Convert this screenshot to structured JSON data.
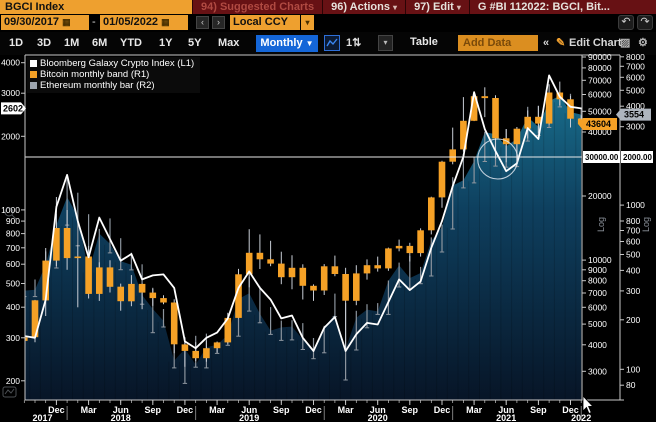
{
  "title_bar": {
    "ticker": "BGCI Index",
    "suggested_charts": "94) Suggested Charts",
    "actions": "96) Actions",
    "edit": "97) Edit",
    "chart_id": "G #BI 112022: BGCI, Bit...",
    "dropdown_glyph": "▾"
  },
  "range_bar": {
    "start_date": "09/30/2017",
    "end_date": "01/05/2022",
    "separator": "-",
    "calendar_icon": "▦",
    "prev": "‹",
    "next": "›",
    "currency": "Local CCY",
    "currency_dd": "▾",
    "undo_icon": "↶",
    "redo_icon": "↷"
  },
  "toolbar": {
    "periods": [
      "1D",
      "3D",
      "1M",
      "6M",
      "YTD",
      "1Y",
      "5Y",
      "Max"
    ],
    "period_lefts": [
      9,
      37,
      64,
      92,
      120,
      159,
      188,
      218
    ],
    "frequency": "Monthly",
    "frequency_dd": "▼",
    "panel_icon": "1⇅",
    "style_dd": "▾",
    "table_label": "Table",
    "add_data_label": "Add Data",
    "collapse_icon": "«",
    "pencil_icon": "✎",
    "edit_chart_label": "Edit Chart",
    "annotate_icon": "▨",
    "gear_icon": "⚙"
  },
  "legend": [
    {
      "label": "Bloomberg Galaxy Crypto Index  (L1)",
      "color": "#FFFFFF"
    },
    {
      "label": "Bitcoin monthly band (R1)",
      "color": "#F5A126"
    },
    {
      "label": "Ethereum monthly bar (R2)",
      "color": "#9CA4AD"
    }
  ],
  "colors": {
    "accent_orange": "#EEA02F",
    "bar_orange": "#F5A126",
    "maroon": "#671114",
    "frequency_blue": "#1466D8",
    "line_white": "#FFFFFF",
    "hilo_gray": "#8D959E",
    "area_top": "#1A7492",
    "area_mid": "#0E3F5E",
    "area_bottom": "#071527",
    "axis_gray": "#C8C8C8"
  },
  "chart_data": {
    "type": "mixed",
    "title": "BGCI Index with Bitcoin band and Ethereum bar",
    "months": [
      "2017-09",
      "2017-10",
      "2017-11",
      "2017-12",
      "2018-01",
      "2018-02",
      "2018-03",
      "2018-04",
      "2018-05",
      "2018-06",
      "2018-07",
      "2018-08",
      "2018-09",
      "2018-10",
      "2018-11",
      "2018-12",
      "2019-01",
      "2019-02",
      "2019-03",
      "2019-04",
      "2019-05",
      "2019-06",
      "2019-07",
      "2019-08",
      "2019-09",
      "2019-10",
      "2019-11",
      "2019-12",
      "2020-01",
      "2020-02",
      "2020-03",
      "2020-04",
      "2020-05",
      "2020-06",
      "2020-07",
      "2020-08",
      "2020-09",
      "2020-10",
      "2020-11",
      "2020-12",
      "2021-01",
      "2021-02",
      "2021-03",
      "2021-04",
      "2021-05",
      "2021-06",
      "2021-07",
      "2021-08",
      "2021-09",
      "2021-10",
      "2021-11",
      "2021-12",
      "2022-01"
    ],
    "series": [
      {
        "name": "Bloomberg Galaxy Crypto Index",
        "axis": "L1",
        "type": "line",
        "color": "#FFFFFF",
        "values": [
          305,
          300,
          430,
          1030,
          1390,
          900,
          640,
          930,
          760,
          620,
          660,
          520,
          540,
          545,
          480,
          290,
          272,
          300,
          315,
          360,
          480,
          560,
          480,
          430,
          360,
          370,
          300,
          265,
          330,
          365,
          265,
          310,
          345,
          340,
          420,
          520,
          470,
          510,
          700,
          900,
          1250,
          1650,
          3030,
          2140,
          1740,
          1440,
          1550,
          2160,
          1950,
          3550,
          2900,
          2640,
          2602
        ]
      },
      {
        "name": "Bitcoin",
        "axis": "R1",
        "type": "ohlc_band",
        "color": "#F5A126",
        "open": [
          4170,
          4338,
          6468,
          9947,
          14156,
          10221,
          10397,
          6938,
          9240,
          7494,
          6404,
          7729,
          7033,
          6626,
          6318,
          4017,
          3743,
          3457,
          3854,
          4105,
          5350,
          8574,
          10817,
          10085,
          9630,
          8310,
          9199,
          7569,
          7193,
          9350,
          8599,
          6439,
          8658,
          9461,
          9137,
          11350,
          11655,
          10784,
          13797,
          19698,
          29001,
          33114,
          45137,
          58919,
          57750,
          37333,
          35041,
          41460,
          47130,
          43790,
          61310,
          56987,
          46217
        ],
        "high": [
          4430,
          6500,
          11400,
          19800,
          17200,
          11790,
          11660,
          9760,
          9990,
          7750,
          8500,
          7760,
          7410,
          6830,
          6540,
          4300,
          4110,
          4190,
          4140,
          5650,
          9090,
          13970,
          13200,
          12320,
          10950,
          10540,
          9550,
          7690,
          9570,
          10500,
          9200,
          9460,
          10070,
          10380,
          11450,
          12480,
          12050,
          14100,
          19860,
          29300,
          41950,
          58350,
          61780,
          64870,
          59500,
          41300,
          42200,
          50500,
          52950,
          66970,
          68990,
          59100,
          47900
        ],
        "low": [
          4110,
          4110,
          5460,
          9380,
          9000,
          6000,
          6600,
          6430,
          7040,
          5780,
          6070,
          5880,
          6100,
          6200,
          3650,
          3150,
          3350,
          3330,
          3670,
          4050,
          5330,
          7450,
          9080,
          9360,
          7700,
          7300,
          6530,
          6430,
          6850,
          8400,
          3850,
          6140,
          8100,
          8830,
          8900,
          11000,
          9850,
          10380,
          13200,
          17600,
          28200,
          32350,
          45000,
          47000,
          30000,
          28800,
          29300,
          37300,
          39600,
          43300,
          53300,
          42000,
          42400
        ],
        "close": [
          4338,
          6468,
          9947,
          14156,
          10221,
          10397,
          6938,
          9240,
          7494,
          6404,
          7729,
          7033,
          6626,
          6318,
          4017,
          3743,
          3457,
          3854,
          4105,
          5350,
          8574,
          10817,
          10085,
          9630,
          8310,
          9199,
          7569,
          7193,
          9350,
          8599,
          6439,
          8658,
          9461,
          9137,
          11350,
          11655,
          10784,
          13797,
          19698,
          29001,
          33114,
          45137,
          58919,
          57750,
          37333,
          35041,
          41460,
          47130,
          43790,
          61310,
          56987,
          46217,
          43604
        ]
      },
      {
        "name": "Ethereum",
        "axis": "R2",
        "type": "hilo_bar_area",
        "color": "#9CA4AD",
        "high": [
          320,
          352,
          522,
          881,
          1432,
          1190,
          880,
          716,
          830,
          628,
          513,
          436,
          308,
          233,
          222,
          157,
          160,
          165,
          147,
          183,
          281,
          365,
          319,
          239,
          198,
          199,
          191,
          155,
          184,
          289,
          253,
          227,
          249,
          253,
          347,
          446,
          490,
          420,
          635,
          760,
          1477,
          2042,
          1947,
          2798,
          4372,
          2892,
          2540,
          3966,
          4028,
          4459,
          4868,
          4760,
          3918
        ],
        "low": [
          277,
          277,
          282,
          414,
          755,
          565,
          368,
          365,
          511,
          404,
          403,
          249,
          167,
          181,
          102,
          82,
          103,
          102,
          125,
          140,
          159,
          226,
          192,
          163,
          150,
          151,
          132,
          116,
          126,
          209,
          86,
          131,
          179,
          216,
          216,
          317,
          308,
          332,
          370,
          518,
          715,
          1272,
          1365,
          1842,
          1728,
          1700,
          1714,
          2452,
          2652,
          2967,
          3959,
          3503,
          3355
        ],
        "close": [
          301,
          305,
          434,
          756,
          1118,
          856,
          394,
          670,
          580,
          455,
          433,
          283,
          233,
          197,
          113,
          133,
          107,
          136,
          141,
          162,
          268,
          290,
          218,
          172,
          180,
          182,
          152,
          129,
          180,
          217,
          133,
          206,
          231,
          225,
          346,
          429,
          359,
          386,
          605,
          737,
          1314,
          1418,
          1846,
          2773,
          2706,
          2275,
          2536,
          3433,
          3001,
          4288,
          4631,
          3683,
          3554
        ]
      }
    ],
    "axes": {
      "L1": {
        "scale": "log",
        "min": 167,
        "max": 4300,
        "ticks": [
          4000,
          3000,
          2000,
          1000,
          900,
          800,
          700,
          600,
          500,
          400,
          300,
          200
        ],
        "last_value": "2602",
        "last_bg": "#FFFFFF"
      },
      "R1": {
        "scale": "log",
        "min": 2200,
        "max": 92000,
        "ticks": [
          90000,
          80000,
          70000,
          60000,
          50000,
          40000,
          20000,
          10000,
          9000,
          8000,
          7000,
          6000,
          5000,
          4000,
          3000
        ],
        "last_value": "43604",
        "last_bg": "#F5A126",
        "log_label": "Log"
      },
      "R2": {
        "scale": "log",
        "min": 65,
        "max": 8200,
        "ticks": [
          8000,
          7000,
          6000,
          5000,
          4000,
          3000,
          1000,
          800,
          700,
          600,
          500,
          400,
          300,
          200,
          100,
          80
        ],
        "last_value": "3554",
        "last_bg": "#AEB5BE",
        "log_label": "Log"
      }
    },
    "x_axis": {
      "quarter_labels": [
        "Dec",
        "Mar",
        "Jun",
        "Sep",
        "Dec",
        "Mar",
        "Jun",
        "Sep",
        "Dec",
        "Mar",
        "Jun",
        "Sep",
        "Dec",
        "Mar",
        "Jun",
        "Sep",
        "Dec"
      ],
      "quarter_mi": [
        3,
        6,
        9,
        12,
        15,
        18,
        21,
        24,
        27,
        30,
        33,
        36,
        39,
        42,
        45,
        48,
        51
      ],
      "year_labels": [
        "2017",
        "2018",
        "2019",
        "2020",
        "2021",
        "2022"
      ],
      "year_mi": [
        1.7,
        9,
        21,
        33,
        45,
        52
      ],
      "year_boundary_mi": [
        4,
        16,
        28,
        40,
        52
      ]
    },
    "tracker": {
      "r1_value": "30000.00",
      "r2_value": "2000.00"
    },
    "annotation_circle": {
      "month_index": 44.2,
      "radius": 20
    }
  }
}
